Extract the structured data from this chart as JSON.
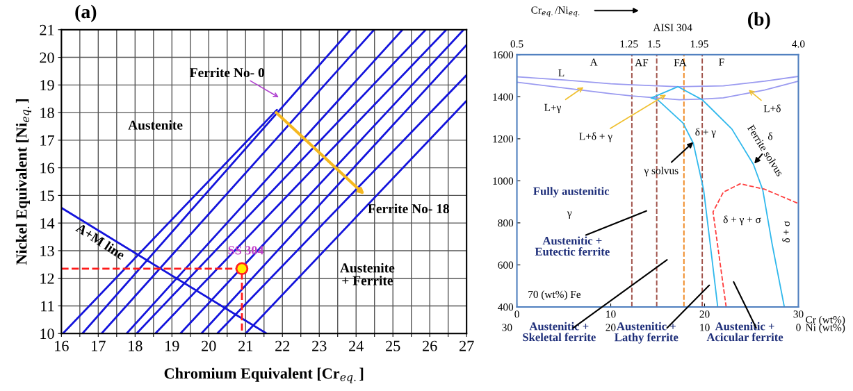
{
  "chart_data": [
    {
      "type": "line",
      "title": "(a)",
      "xlabel": "Chromium Equivalent [Cr$_{eq.}$]",
      "ylabel": "Nickel Equivalent [Ni$_{eq.}$]",
      "xlim": [
        16,
        27
      ],
      "ylim": [
        10,
        21
      ],
      "xticks": [
        16,
        {
          "value": 16.5,
          "label": null
        },
        17,
        {
          "value": 17.5,
          "label": null
        },
        18,
        {
          "value": 18.5,
          "label": null
        },
        19,
        {
          "value": 19.5,
          "label": null
        },
        20,
        {
          "value": 20.5,
          "label": null
        },
        21,
        {
          "value": 21.5,
          "label": null
        },
        22,
        {
          "value": 22.5,
          "label": null
        },
        23,
        {
          "value": 23.5,
          "label": null
        },
        24,
        {
          "value": 24.5,
          "label": null
        },
        25,
        {
          "value": 25.5,
          "label": null
        },
        26,
        {
          "value": 26.5,
          "label": null
        },
        27
      ],
      "yticks": [
        10,
        11,
        12,
        13,
        14,
        15,
        16,
        17,
        18,
        19,
        20,
        21
      ],
      "grid": true,
      "marker": "none",
      "series": [
        {
          "color": "#1414dc",
          "x": [
            16.04,
            21.85
          ],
          "values": [
            10,
            18.1
          ]
        },
        {
          "color": "#1414dc",
          "x": [
            16.57,
            23.85
          ],
          "values": [
            10,
            21
          ]
        },
        {
          "color": "#1414dc",
          "x": [
            17.09,
            24.49
          ],
          "values": [
            10,
            21
          ]
        },
        {
          "color": "#1414dc",
          "x": [
            17.77,
            25.26
          ],
          "values": [
            10,
            21
          ]
        },
        {
          "color": "#1414dc",
          "x": [
            18.04,
            25.89
          ],
          "values": [
            10,
            21
          ]
        },
        {
          "color": "#1414dc",
          "x": [
            18.55,
            26.45
          ],
          "values": [
            10,
            21
          ]
        },
        {
          "color": "#1414dc",
          "x": [
            19.23,
            26.92
          ],
          "values": [
            10,
            21
          ]
        },
        {
          "color": "#1414dc",
          "x": [
            19.8,
            27
          ],
          "values": [
            10,
            20.45
          ]
        },
        {
          "color": "#1414dc",
          "x": [
            20.23,
            27
          ],
          "values": [
            10,
            19.36
          ]
        },
        {
          "color": "#1414dc",
          "x": [
            21.0,
            27
          ],
          "values": [
            10,
            18.43
          ]
        },
        {
          "color": "#1414dc",
          "x": [
            16,
            21.57
          ],
          "values": [
            14.55,
            10
          ]
        },
        {
          "color": "#ff1a1a",
          "line_style": "dashed",
          "x": [
            16,
            20.9,
            20.9
          ],
          "values": [
            12.35,
            12.35,
            10
          ]
        },
        {
          "type": "scatter",
          "name": "SS 304",
          "color": "#ffee00",
          "marker": "circle",
          "x": [
            20.9
          ],
          "values": [
            12.35
          ]
        }
      ],
      "annotations": [
        "Austenite",
        "Ferrite No- 0",
        "Ferrite No- 18",
        "Austenite\n+ Ferrite",
        "A+M line"
      ]
    },
    {
      "type": "line",
      "title": "(b)",
      "xlabel": "Cr (wt%)",
      "xlim": [
        0,
        30
      ],
      "xticks": [
        0,
        10,
        20,
        30
      ],
      "ylim": [
        400,
        1600
      ],
      "yticks": [
        400,
        600,
        800,
        1000,
        1200,
        1400,
        1600
      ],
      "grid": false,
      "marker": "none",
      "series": [
        {
          "color": "#9a9af0",
          "x": [
            0,
            5,
            10,
            12.25,
            17.3,
            19.75,
            22,
            26.4,
            30
          ],
          "values": [
            1495,
            1480,
            1462,
            1457,
            1448,
            1450,
            1452,
            1474,
            1497
          ]
        },
        {
          "color": "#9a9af0",
          "x": [
            0,
            5,
            10,
            12.25,
            17.3,
            19.75,
            22,
            26.4,
            30
          ],
          "values": [
            1469,
            1442,
            1415,
            1404,
            1386,
            1389,
            1395,
            1432,
            1474
          ]
        },
        {
          "color": "#30b8ec",
          "x": [
            17.15,
            14.3,
            15.0,
            17.7,
            18.8,
            19.9,
            20.6,
            21.4
          ],
          "values": [
            1448,
            1394,
            1386,
            1275,
            1179,
            957,
            699,
            400
          ]
        },
        {
          "color": "#30b8ec",
          "x": [
            17.15,
            19.75,
            22.9,
            25.2,
            26.2,
            27.2,
            28.5
          ],
          "values": [
            1448,
            1386,
            1247,
            1079,
            957,
            699,
            400
          ]
        },
        {
          "color": "#ff3b3b",
          "line_style": "dashed",
          "x": [
            22.3,
            20.9,
            22.0,
            23.8,
            26.4,
            29.9
          ],
          "values": [
            400,
            852,
            946,
            986,
            960,
            894
          ]
        }
      ],
      "ref_lines": [
        {
          "axis": "x",
          "value": 12.25,
          "label": null,
          "color": "#a0524a",
          "line_style": "dashed"
        },
        {
          "axis": "x",
          "value": 14.9,
          "label": null,
          "color": "#a0524a",
          "line_style": "dashed"
        },
        {
          "axis": "x",
          "value": 17.8,
          "label": "AISI 304",
          "color": "#f08a24",
          "line_style": "dashed"
        },
        {
          "axis": "x",
          "value": 19.75,
          "label": null,
          "color": "#a0524a",
          "line_style": "dashed"
        }
      ],
      "annotations": [
        "A",
        "AF",
        "FA",
        "F",
        "L",
        {
          "text": "L+γ",
          "x": 7.1,
          "y": 1446
        },
        {
          "text": "L+δ + γ",
          "x": 15.9,
          "y": 1410
        },
        {
          "text": "L+δ",
          "x": 24.7,
          "y": 1433
        },
        "δ + γ",
        "δ",
        {
          "text": "Ferrite solvus",
          "x": 25.3,
          "y": 1082
        },
        {
          "text": "γ solvus",
          "x": 18.8,
          "y": 1184
        },
        "Fully austenitic",
        "γ",
        "Austenitic +\nEutectic ferrite",
        "δ + γ + σ",
        "δ + σ",
        "70 (wt%) Fe",
        "Austenitic +\nSkeletal ferrite",
        "Austenitic +\nLathy ferrite",
        "Austenitic +\nAcicular ferrite",
        "0.5",
        "4.0",
        "Cr$_{eq.}$/Ni$_{eq.}$",
        "30",
        "20",
        "10",
        "0",
        "Ni (wt%)",
        "1.25",
        "1.5",
        "1.95"
      ]
    }
  ]
}
